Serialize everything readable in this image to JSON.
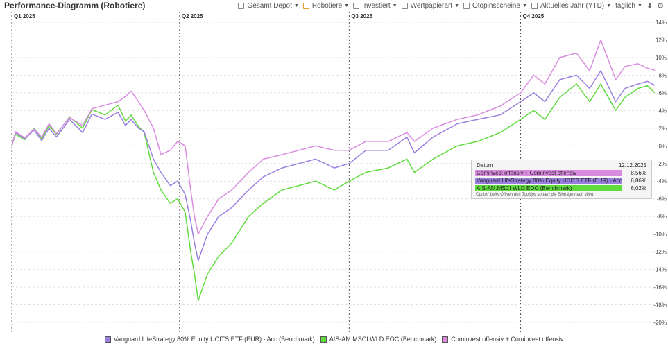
{
  "header": {
    "title": "Performance-Diagramm (Robotiere)",
    "filters": [
      {
        "label": "Gesamt Depot",
        "color": "#8c8c8c"
      },
      {
        "label": "Robotiere",
        "color": "#e89a2a"
      },
      {
        "label": "Investiert",
        "color": "#8c8c8c"
      },
      {
        "label": "Wertpapierart",
        "color": "#8c8c8c"
      },
      {
        "label": "Otopinsscheine",
        "color": "#8c8c8c"
      }
    ],
    "period": "Aktuelles Jahr (YTD)",
    "interval": "täglich"
  },
  "tooltip": {
    "date_label": "Datum",
    "date_value": "12.12.2025",
    "rows": [
      {
        "label": "Cominvest offensiv + Cominvest offensiv",
        "value": "8,56%",
        "color": "#d98be0"
      },
      {
        "label": "Vanguard LifeStrategy 80% Equity UCITS ETF (EUR) - Acc (Benchmark)",
        "value": "6,86%",
        "color": "#9b7fe0"
      },
      {
        "label": "AIS-AM.MSCI WLD EOC (Benchmark)",
        "value": "6,02%",
        "color": "#5fdc3c"
      }
    ],
    "note": "'Option' beim Öffnen des Tooltips sortiert die Einträge nach Wert"
  },
  "chart_data": {
    "type": "line",
    "x_range": [
      "2025-01-01",
      "2025-12-12"
    ],
    "ylim": [
      -21,
      15
    ],
    "y_ticks": [
      "14%",
      "12%",
      "10%",
      "8%",
      "6%",
      "4%",
      "2%",
      "0%",
      "-2%",
      "-4%",
      "-6%",
      "-8%",
      "-10%",
      "-12%",
      "-14%",
      "-16%",
      "-18%",
      "-20%"
    ],
    "y_tick_values": [
      14,
      12,
      10,
      8,
      6,
      4,
      2,
      0,
      -2,
      -4,
      -6,
      -8,
      -10,
      -12,
      -14,
      -16,
      -18,
      -20
    ],
    "quarter_markers": [
      {
        "label": "Q1 2025",
        "date": "2025-01-01"
      },
      {
        "label": "Q2 2025",
        "date": "2025-04-01"
      },
      {
        "label": "Q3 2025",
        "date": "2025-07-01"
      },
      {
        "label": "Q4 2025",
        "date": "2025-10-01"
      }
    ],
    "grid": true,
    "legend_position": "bottom",
    "series": [
      {
        "name": "Vanguard LifeStrategy 80% Equity UCITS ETF (EUR) - Acc (Benchmark)",
        "color": "#9b7fe0",
        "points": [
          [
            "2025-01-01",
            0
          ],
          [
            "2025-01-03",
            1.5
          ],
          [
            "2025-01-08",
            0.8
          ],
          [
            "2025-01-13",
            1.8
          ],
          [
            "2025-01-17",
            0.6
          ],
          [
            "2025-01-21",
            2
          ],
          [
            "2025-01-25",
            1
          ],
          [
            "2025-02-01",
            3
          ],
          [
            "2025-02-08",
            1.5
          ],
          [
            "2025-02-13",
            3.6
          ],
          [
            "2025-02-20",
            3
          ],
          [
            "2025-02-27",
            3.8
          ],
          [
            "2025-03-03",
            2.3
          ],
          [
            "2025-03-06",
            3
          ],
          [
            "2025-03-10",
            2
          ],
          [
            "2025-03-13",
            1.6
          ],
          [
            "2025-03-18",
            -1.5
          ],
          [
            "2025-03-22",
            -3
          ],
          [
            "2025-03-27",
            -4.5
          ],
          [
            "2025-03-31",
            -4
          ],
          [
            "2025-04-04",
            -5.5
          ],
          [
            "2025-04-07",
            -8.5
          ],
          [
            "2025-04-09",
            -11
          ],
          [
            "2025-04-11",
            -13
          ],
          [
            "2025-04-16",
            -10
          ],
          [
            "2025-04-22",
            -8
          ],
          [
            "2025-04-29",
            -7
          ],
          [
            "2025-05-08",
            -5
          ],
          [
            "2025-05-16",
            -3.5
          ],
          [
            "2025-05-26",
            -2.5
          ],
          [
            "2025-06-04",
            -2
          ],
          [
            "2025-06-13",
            -1.5
          ],
          [
            "2025-06-23",
            -2.5
          ],
          [
            "2025-07-01",
            -2
          ],
          [
            "2025-07-10",
            -0.5
          ],
          [
            "2025-07-22",
            -0.5
          ],
          [
            "2025-08-01",
            1
          ],
          [
            "2025-08-05",
            -0.8
          ],
          [
            "2025-08-15",
            1
          ],
          [
            "2025-08-28",
            2.5
          ],
          [
            "2025-09-08",
            3
          ],
          [
            "2025-09-20",
            3.5
          ],
          [
            "2025-10-01",
            5
          ],
          [
            "2025-10-08",
            6
          ],
          [
            "2025-10-14",
            5
          ],
          [
            "2025-10-22",
            7.5
          ],
          [
            "2025-10-31",
            8
          ],
          [
            "2025-11-07",
            6.5
          ],
          [
            "2025-11-13",
            8.5
          ],
          [
            "2025-11-21",
            5
          ],
          [
            "2025-11-26",
            6.5
          ],
          [
            "2025-12-03",
            7
          ],
          [
            "2025-12-08",
            7.3
          ],
          [
            "2025-12-12",
            6.86
          ]
        ]
      },
      {
        "name": "AIS-AM.MSCI WLD EOC (Benchmark)",
        "color": "#5fdc3c",
        "points": [
          [
            "2025-01-01",
            0
          ],
          [
            "2025-01-03",
            1.3
          ],
          [
            "2025-01-08",
            0.7
          ],
          [
            "2025-01-13",
            2
          ],
          [
            "2025-01-17",
            0.8
          ],
          [
            "2025-01-21",
            2.3
          ],
          [
            "2025-01-25",
            1.3
          ],
          [
            "2025-02-01",
            3.3
          ],
          [
            "2025-02-08",
            2
          ],
          [
            "2025-02-13",
            4.1
          ],
          [
            "2025-02-20",
            3.5
          ],
          [
            "2025-02-27",
            4.6
          ],
          [
            "2025-03-03",
            2.8
          ],
          [
            "2025-03-06",
            3.5
          ],
          [
            "2025-03-10",
            2.2
          ],
          [
            "2025-03-13",
            1.5
          ],
          [
            "2025-03-18",
            -3
          ],
          [
            "2025-03-22",
            -5
          ],
          [
            "2025-03-27",
            -6.5
          ],
          [
            "2025-03-31",
            -6
          ],
          [
            "2025-04-04",
            -7.5
          ],
          [
            "2025-04-07",
            -12
          ],
          [
            "2025-04-09",
            -14.5
          ],
          [
            "2025-04-11",
            -17.5
          ],
          [
            "2025-04-16",
            -14.5
          ],
          [
            "2025-04-22",
            -12.5
          ],
          [
            "2025-04-29",
            -11
          ],
          [
            "2025-05-08",
            -8
          ],
          [
            "2025-05-16",
            -6.5
          ],
          [
            "2025-05-26",
            -5
          ],
          [
            "2025-06-04",
            -4.5
          ],
          [
            "2025-06-13",
            -4
          ],
          [
            "2025-06-23",
            -5
          ],
          [
            "2025-07-01",
            -4
          ],
          [
            "2025-07-10",
            -3
          ],
          [
            "2025-07-22",
            -2.5
          ],
          [
            "2025-08-01",
            -1.5
          ],
          [
            "2025-08-05",
            -3
          ],
          [
            "2025-08-15",
            -1.5
          ],
          [
            "2025-08-28",
            0
          ],
          [
            "2025-09-08",
            0.5
          ],
          [
            "2025-09-20",
            1.5
          ],
          [
            "2025-10-01",
            3
          ],
          [
            "2025-10-08",
            4
          ],
          [
            "2025-10-14",
            3
          ],
          [
            "2025-10-22",
            5.5
          ],
          [
            "2025-10-31",
            7
          ],
          [
            "2025-11-07",
            5
          ],
          [
            "2025-11-13",
            7
          ],
          [
            "2025-11-21",
            4
          ],
          [
            "2025-11-26",
            5.5
          ],
          [
            "2025-12-03",
            6.5
          ],
          [
            "2025-12-08",
            6.8
          ],
          [
            "2025-12-12",
            6.02
          ]
        ]
      },
      {
        "name": "Cominvest offensiv + Cominvest offensiv",
        "color": "#d98be0",
        "points": [
          [
            "2025-01-01",
            0
          ],
          [
            "2025-01-03",
            1.6
          ],
          [
            "2025-01-08",
            0.9
          ],
          [
            "2025-01-13",
            1.9
          ],
          [
            "2025-01-17",
            1
          ],
          [
            "2025-01-21",
            2.5
          ],
          [
            "2025-01-25",
            1.4
          ],
          [
            "2025-02-01",
            3.2
          ],
          [
            "2025-02-08",
            2.3
          ],
          [
            "2025-02-13",
            4.2
          ],
          [
            "2025-02-20",
            4.6
          ],
          [
            "2025-02-27",
            5
          ],
          [
            "2025-03-03",
            5.6
          ],
          [
            "2025-03-06",
            6.2
          ],
          [
            "2025-03-10",
            5
          ],
          [
            "2025-03-13",
            4
          ],
          [
            "2025-03-18",
            2
          ],
          [
            "2025-03-22",
            -1
          ],
          [
            "2025-03-27",
            -0.5
          ],
          [
            "2025-03-31",
            0.5
          ],
          [
            "2025-04-04",
            0
          ],
          [
            "2025-04-07",
            -5
          ],
          [
            "2025-04-09",
            -8
          ],
          [
            "2025-04-11",
            -10
          ],
          [
            "2025-04-16",
            -8
          ],
          [
            "2025-04-22",
            -6
          ],
          [
            "2025-04-29",
            -5
          ],
          [
            "2025-05-08",
            -3
          ],
          [
            "2025-05-16",
            -1.5
          ],
          [
            "2025-05-26",
            -1
          ],
          [
            "2025-06-04",
            -0.5
          ],
          [
            "2025-06-13",
            0
          ],
          [
            "2025-06-23",
            -0.5
          ],
          [
            "2025-07-01",
            -0.5
          ],
          [
            "2025-07-10",
            0.5
          ],
          [
            "2025-07-22",
            0.5
          ],
          [
            "2025-08-01",
            1.5
          ],
          [
            "2025-08-05",
            0.5
          ],
          [
            "2025-08-15",
            2
          ],
          [
            "2025-08-28",
            3
          ],
          [
            "2025-09-08",
            3.5
          ],
          [
            "2025-09-20",
            4.5
          ],
          [
            "2025-10-01",
            6
          ],
          [
            "2025-10-08",
            8
          ],
          [
            "2025-10-14",
            7
          ],
          [
            "2025-10-22",
            10
          ],
          [
            "2025-10-31",
            10.5
          ],
          [
            "2025-11-07",
            8.5
          ],
          [
            "2025-11-13",
            12
          ],
          [
            "2025-11-21",
            7.5
          ],
          [
            "2025-11-26",
            9
          ],
          [
            "2025-12-03",
            9.3
          ],
          [
            "2025-12-08",
            8.8
          ],
          [
            "2025-12-12",
            8.56
          ]
        ]
      }
    ]
  }
}
